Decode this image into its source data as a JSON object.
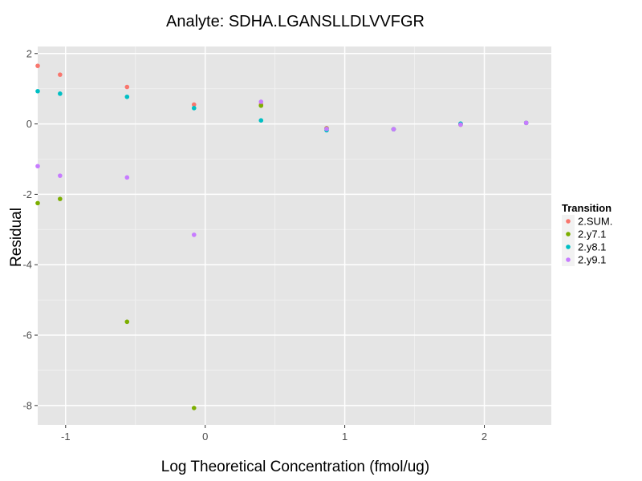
{
  "chart_data": {
    "type": "scatter",
    "title": "Analyte: SDHA.LGANSLLDLVVFGR",
    "xlabel": "Log Theoretical Concentration (fmol/ug)",
    "ylabel": "Residual",
    "xlim": [
      -1.2,
      2.48
    ],
    "ylim": [
      -8.55,
      2.2
    ],
    "x_ticks": [
      -1,
      0,
      1,
      2
    ],
    "y_ticks": [
      -8,
      -6,
      -4,
      -2,
      0,
      2
    ],
    "grid": true,
    "legend_title": "Transition",
    "legend_position": "right",
    "series": [
      {
        "name": "2.SUM.",
        "color": "#F8766D",
        "points": [
          {
            "x": -1.2,
            "y": 1.65
          },
          {
            "x": -1.04,
            "y": 1.4
          },
          {
            "x": -0.56,
            "y": 1.05
          },
          {
            "x": -0.08,
            "y": 0.55
          },
          {
            "x": 0.4,
            "y": 0.55
          },
          {
            "x": 0.87,
            "y": -0.12
          },
          {
            "x": 1.35,
            "y": -0.15
          },
          {
            "x": 1.83,
            "y": 0.0
          },
          {
            "x": 2.3,
            "y": 0.03
          }
        ]
      },
      {
        "name": "2.y7.1",
        "color": "#7CAE00",
        "points": [
          {
            "x": -1.2,
            "y": -2.25
          },
          {
            "x": -1.04,
            "y": -2.13
          },
          {
            "x": -0.56,
            "y": -5.62
          },
          {
            "x": -0.08,
            "y": -8.07
          },
          {
            "x": 0.4,
            "y": 0.52
          },
          {
            "x": 0.87,
            "y": -0.13
          },
          {
            "x": 1.35,
            "y": -0.15
          },
          {
            "x": 1.83,
            "y": -0.02
          },
          {
            "x": 2.3,
            "y": 0.03
          }
        ]
      },
      {
        "name": "2.y8.1",
        "color": "#00BFC4",
        "points": [
          {
            "x": -1.2,
            "y": 0.93
          },
          {
            "x": -1.04,
            "y": 0.86
          },
          {
            "x": -0.56,
            "y": 0.77
          },
          {
            "x": -0.08,
            "y": 0.45
          },
          {
            "x": 0.4,
            "y": 0.1
          },
          {
            "x": 0.87,
            "y": -0.18
          },
          {
            "x": 1.35,
            "y": -0.15
          },
          {
            "x": 1.83,
            "y": 0.01
          },
          {
            "x": 2.3,
            "y": 0.03
          }
        ]
      },
      {
        "name": "2.y9.1",
        "color": "#C77CFF",
        "points": [
          {
            "x": -1.2,
            "y": -1.2
          },
          {
            "x": -1.04,
            "y": -1.47
          },
          {
            "x": -0.56,
            "y": -1.52
          },
          {
            "x": -0.08,
            "y": -3.15
          },
          {
            "x": 0.4,
            "y": 0.63
          },
          {
            "x": 0.87,
            "y": -0.14
          },
          {
            "x": 1.35,
            "y": -0.15
          },
          {
            "x": 1.83,
            "y": -0.02
          },
          {
            "x": 2.3,
            "y": 0.03
          }
        ]
      }
    ]
  }
}
